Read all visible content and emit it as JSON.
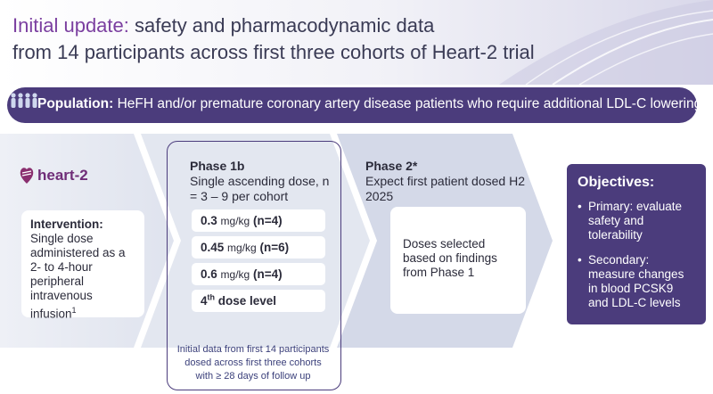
{
  "header": {
    "title_accent": "Initial update:",
    "title_rest_1": "safety and pharmacodynamic data",
    "title_line_2": "from 14 participants across first three cohorts of Heart-2 trial"
  },
  "population": {
    "label": "Population:",
    "text": "HeFH and/or premature coronary artery disease patients who require additional LDL-C lowering"
  },
  "logo": {
    "text": "heart-2"
  },
  "intervention": {
    "heading": "Intervention:",
    "body": "Single dose administered as a 2- to 4-hour peripheral intravenous infusion",
    "footnote": "1"
  },
  "phase1": {
    "title": "Phase 1b",
    "subtitle": "Single ascending dose, n = 3 – 9 per cohort",
    "doses": [
      {
        "amount": "0.3",
        "unit": "mg/kg",
        "n": "(n=4)"
      },
      {
        "amount": "0.45",
        "unit": "mg/kg",
        "n": "(n=6)"
      },
      {
        "amount": "0.6",
        "unit": "mg/kg",
        "n": "(n=4)"
      }
    ],
    "fourth_dose": {
      "prefix": "4",
      "sup": "th",
      "suffix": " dose level"
    },
    "note": "Initial data from first 14 participants dosed across first three cohorts with ≥ 28 days of follow up"
  },
  "phase2": {
    "title": "Phase 2*",
    "subtitle": "Expect first patient dosed H2 2025",
    "box_text": "Doses selected based on findings from Phase 1"
  },
  "objectives": {
    "title": "Objectives:",
    "items": [
      "Primary: evaluate safety and tolerability",
      "Secondary: measure changes in blood PCSK9 and LDL-C levels"
    ]
  },
  "colors": {
    "accent_purple": "#7b3fa0",
    "dark_purple": "#4b3c7c",
    "band_blue": "#dde2ee",
    "logo_purple": "#6f2d78"
  }
}
